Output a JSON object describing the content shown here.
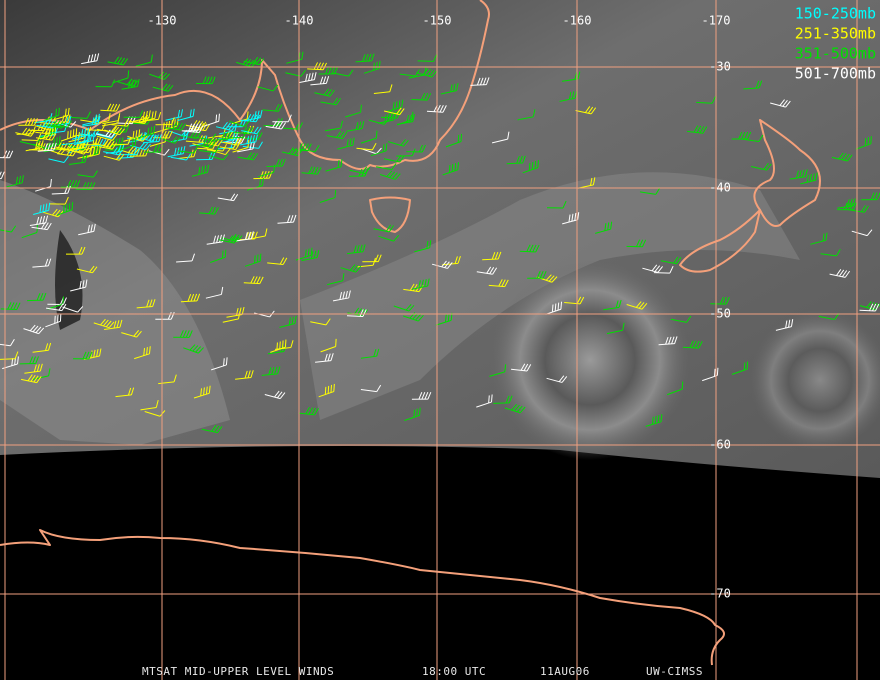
{
  "map": {
    "longitude_labels": [
      "-130",
      "-140",
      "-150",
      "-160",
      "-170"
    ],
    "latitude_labels": [
      "-30",
      "-40",
      "-50",
      "-60",
      "-70"
    ],
    "legend": [
      {
        "label": "150-250mb",
        "color": "#00ffff"
      },
      {
        "label": "251-350mb",
        "color": "#ffff00"
      },
      {
        "label": "351-500mb",
        "color": "#00e000"
      },
      {
        "label": "501-700mb",
        "color": "#ffffff"
      }
    ],
    "footer": {
      "title": "MTSAT MID-UPPER LEVEL WINDS",
      "time": "18:00 UTC",
      "date": "11AUG06",
      "source": "UW-CIMSS"
    }
  }
}
